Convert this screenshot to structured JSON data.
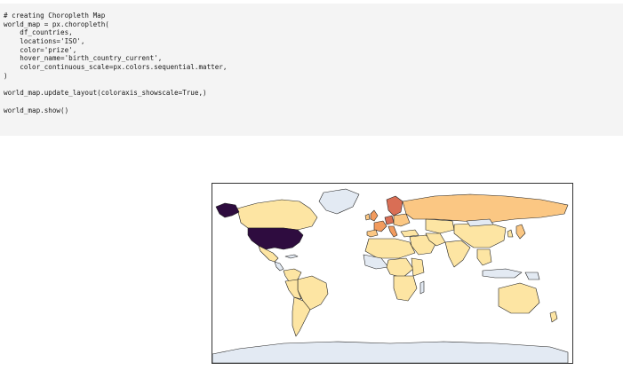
{
  "code_cell": {
    "lines": [
      "# creating Choropleth Map",
      "world_map = px.choropleth(",
      "    df_countries,",
      "    locations='ISO',",
      "    color='prize',",
      "    hover_name='birth_country_current',",
      "    color_continuous_scale=px.colors.sequential.matter,",
      ")",
      "",
      "world_map.update_layout(coloraxis_showscale=True,)",
      "",
      "world_map.show()"
    ]
  },
  "map": {
    "colors": {
      "no_data": "#e3eaf3",
      "low": "#fde5a3",
      "low_mid": "#fbc783",
      "mid": "#f29b5e",
      "mid_high": "#d96e55",
      "high": "#2e0c3f",
      "coast_stroke": "#222222"
    }
  }
}
